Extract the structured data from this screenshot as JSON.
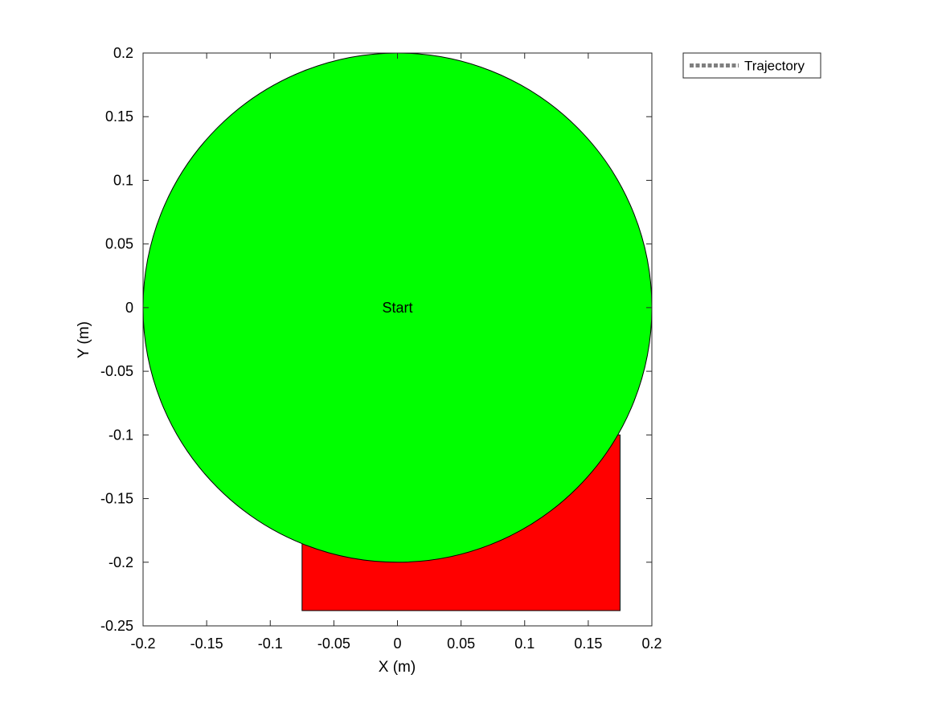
{
  "chart_data": {
    "type": "scatter",
    "xlabel": "X (m)",
    "ylabel": "Y (m)",
    "xlim": [
      -0.2,
      0.2
    ],
    "ylim": [
      -0.25,
      0.2
    ],
    "xticks": [
      -0.2,
      -0.15,
      -0.1,
      -0.05,
      0,
      0.05,
      0.1,
      0.15,
      0.2
    ],
    "xtick_labels": [
      "-0.2",
      "-0.15",
      "-0.1",
      "-0.05",
      "0",
      "0.05",
      "0.1",
      "0.15",
      "0.2"
    ],
    "yticks": [
      0.2,
      0.15,
      0.1,
      0.05,
      0,
      -0.05,
      -0.1,
      -0.15,
      -0.2,
      -0.25
    ],
    "ytick_labels": [
      "0.2",
      "0.15",
      "0.1",
      "0.05",
      "0",
      "-0.05",
      "-0.1",
      "-0.15",
      "-0.2",
      "-0.25"
    ],
    "grid": false,
    "legend": {
      "placement": "outside-top-right",
      "entries": [
        {
          "label": "Trajectory",
          "color": "#7f7f7f",
          "line_style": "dotted"
        }
      ]
    },
    "shapes": [
      {
        "kind": "rectangle",
        "color": "#ff0000",
        "edge_color": "#000000",
        "x_range": [
          -0.075,
          0.175
        ],
        "y_range": [
          -0.238,
          -0.1
        ]
      },
      {
        "kind": "circle",
        "color": "#00ff00",
        "edge_color": "#000000",
        "center": [
          0,
          0
        ],
        "radius": 0.2
      }
    ],
    "annotations": [
      {
        "text": "Start",
        "x": 0,
        "y": 0
      }
    ]
  }
}
